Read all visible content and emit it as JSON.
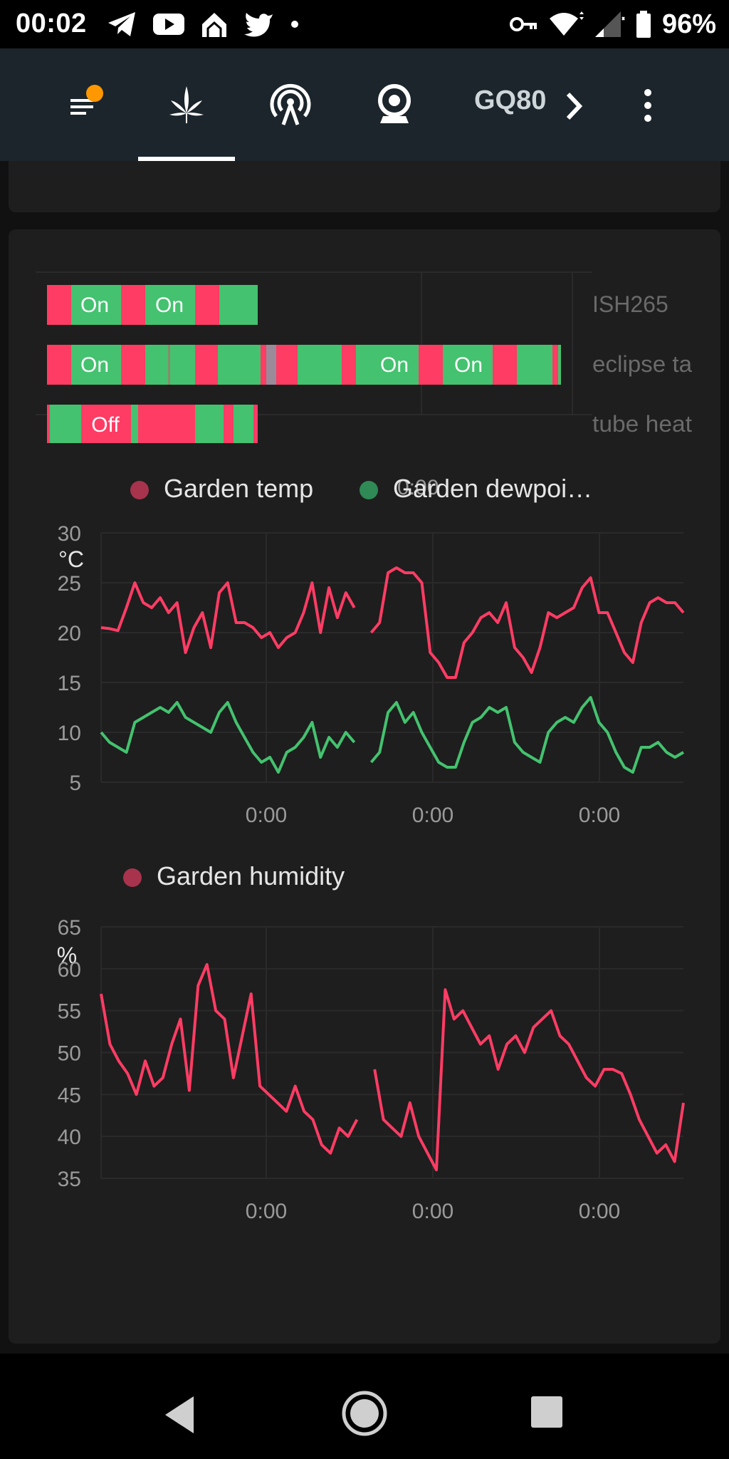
{
  "status_bar": {
    "time": "00:02",
    "battery": "96%",
    "left_icons": [
      "telegram-icon",
      "youtube-icon",
      "home-assistant-icon",
      "twitter-icon",
      "dot-icon"
    ],
    "right_icons": [
      "vpn-key-icon",
      "wifi-icon",
      "signal-icon",
      "battery-icon"
    ]
  },
  "top_bar": {
    "tabs": [
      {
        "icon": "menu-icon",
        "badge": true
      },
      {
        "icon": "cannabis-leaf-icon",
        "active": true
      },
      {
        "icon": "antenna-icon"
      },
      {
        "icon": "webcam-icon"
      }
    ],
    "device_label": "GQ80",
    "colors": {
      "background": "#1b252b",
      "badge": "#ff9800"
    }
  },
  "timeline": {
    "time_label": "0:00",
    "rows": [
      {
        "name": "ISH265",
        "labels": [
          "On",
          "On"
        ]
      },
      {
        "name": "eclipse ta",
        "labels": [
          "On",
          "On",
          "On"
        ]
      },
      {
        "name": "tube heat",
        "labels": [
          "Off"
        ]
      }
    ],
    "colors": {
      "on": "#44c26f",
      "off": "#ff3c64"
    }
  },
  "chart_data": [
    {
      "type": "line",
      "unit": "°C",
      "legend": [
        "Garden temp",
        "Garden dewpoi…"
      ],
      "y_ticks": [
        "30",
        "25",
        "20",
        "15",
        "10",
        "5"
      ],
      "ylim": [
        5,
        30
      ],
      "x_ticks": [
        "0:00",
        "0:00",
        "0:00"
      ],
      "series": [
        {
          "name": "Garden temp",
          "color": "#ff3c64",
          "values": [
            20.5,
            20.4,
            20.2,
            22.5,
            25,
            23,
            22.5,
            23.5,
            22,
            23,
            18,
            20.5,
            22,
            18.5,
            24,
            25,
            21,
            21,
            20.5,
            19.5,
            20,
            18.5,
            19.5,
            20,
            22,
            25,
            20,
            24.5,
            21.5,
            24,
            22.5,
            null,
            20,
            21,
            26,
            26.5,
            26,
            26,
            25,
            18,
            17,
            15.5,
            15.5,
            19,
            20,
            21.5,
            22,
            21,
            23,
            18.5,
            17.5,
            16,
            18.5,
            22,
            21.5,
            22,
            22.5,
            24.5,
            25.5,
            22,
            22,
            20,
            18,
            17,
            21,
            23,
            23.5,
            23,
            23,
            22
          ]
        },
        {
          "name": "Garden dewpoint",
          "color": "#44c26f",
          "values": [
            10,
            9,
            8.5,
            8,
            11,
            11.5,
            12,
            12.5,
            12,
            13,
            11.5,
            11,
            10.5,
            10,
            12,
            13,
            11,
            9.5,
            8,
            7,
            7.5,
            6,
            8,
            8.5,
            9.5,
            11,
            7.5,
            9.5,
            8.5,
            10,
            9,
            null,
            7,
            8,
            12,
            13,
            11,
            12,
            10,
            8.5,
            7,
            6.5,
            6.5,
            9,
            11,
            11.5,
            12.5,
            12,
            12.5,
            9,
            8,
            7.5,
            7,
            10,
            11,
            11.5,
            11,
            12.5,
            13.5,
            11,
            10,
            8,
            6.5,
            6,
            8.5,
            8.5,
            9,
            8,
            7.5,
            8
          ]
        }
      ]
    },
    {
      "type": "line",
      "unit": "%",
      "legend": [
        "Garden humidity"
      ],
      "y_ticks": [
        "65",
        "60",
        "55",
        "50",
        "45",
        "40",
        "35"
      ],
      "ylim": [
        35,
        65
      ],
      "x_ticks": [
        "0:00",
        "0:00",
        "0:00"
      ],
      "series": [
        {
          "name": "Garden humidity",
          "color": "#ff3c64",
          "values": [
            57,
            51,
            49,
            47.5,
            45,
            49,
            46,
            47,
            51,
            54,
            45.5,
            58,
            60.5,
            55,
            54,
            47,
            52,
            57,
            46,
            45,
            44,
            43,
            46,
            43,
            42,
            39,
            38,
            41,
            40,
            42,
            null,
            48,
            42,
            41,
            40,
            44,
            40,
            38,
            36,
            57.5,
            54,
            55,
            53,
            51,
            52,
            48,
            51,
            52,
            50,
            53,
            54,
            55,
            52,
            51,
            49,
            47,
            46,
            48,
            48,
            47.5,
            45,
            42,
            40,
            38,
            39,
            37,
            44
          ]
        }
      ]
    }
  ]
}
